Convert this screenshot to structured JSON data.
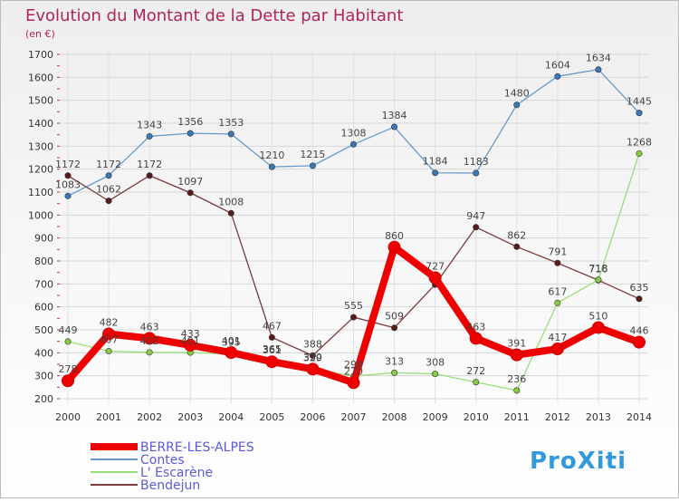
{
  "header": {
    "title": "Evolution du Montant de la Dette par Habitant",
    "subtitle": "(en €)"
  },
  "logo": {
    "text": "ProXiti"
  },
  "colors": {
    "title": "#b0245c",
    "background_top": "#f2f2f2",
    "background_bottom": "#ffffff",
    "grid": "#d8d8d8",
    "axis_text": "#333333",
    "label_text": "#444444",
    "legend_text": "#5b5bd6"
  },
  "chart_data": {
    "type": "line",
    "title": "Evolution du Montant de la Dette par Habitant",
    "subtitle": "(en €)",
    "xlabel": "",
    "ylabel": "",
    "x": [
      "2000",
      "2001",
      "2002",
      "2003",
      "2004",
      "2005",
      "2006",
      "2007",
      "2008",
      "2009",
      "2010",
      "2011",
      "2012",
      "2013",
      "2014"
    ],
    "ylim": [
      200,
      1700
    ],
    "yticks": [
      200,
      300,
      400,
      500,
      600,
      700,
      800,
      900,
      1000,
      1100,
      1200,
      1300,
      1400,
      1500,
      1600,
      1700
    ],
    "grid": true,
    "legend_position": "bottom-left",
    "series": [
      {
        "name": "Contes",
        "color": "#6699cc",
        "marker": "#3a78b8",
        "values": [
          1083,
          1172,
          1343,
          1356,
          1353,
          1210,
          1215,
          1308,
          1384,
          1184,
          1183,
          1480,
          1604,
          1634,
          1445
        ]
      },
      {
        "name": "Bendejun",
        "color": "#7a3b3b",
        "marker": "#5a1a1a",
        "values": [
          1172,
          1062,
          1172,
          1097,
          1008,
          467,
          388,
          555,
          509,
          697,
          947,
          862,
          791,
          716,
          635
        ]
      },
      {
        "name": "L' Escarène",
        "color": "#99dd77",
        "marker": "#88cc44",
        "values": [
          449,
          407,
          402,
          401,
          395,
          365,
          330,
          298,
          313,
          308,
          272,
          236,
          617,
          718,
          1268
        ]
      },
      {
        "name": "BERRE-LES-ALPES",
        "color": "#ee0000",
        "marker": "#ee0000",
        "emphasis": true,
        "values": [
          278,
          482,
          463,
          433,
          401,
          361,
          329,
          270,
          860,
          727,
          463,
          391,
          417,
          510,
          446
        ]
      }
    ],
    "data_labels": [
      {
        "series": "Contes",
        "values": [
          "1083",
          "1172",
          "1343",
          "1356",
          "1353",
          "1210",
          "1215",
          "1308",
          "1384",
          "1184",
          "1183",
          "1480",
          "1604",
          "1634",
          "1445"
        ]
      },
      {
        "series": "Bendejun",
        "values": [
          "1172",
          "1062",
          "1172",
          "1097",
          "1008",
          "467",
          "388",
          "555",
          "509",
          "",
          "947",
          "862",
          "791",
          "716",
          "635"
        ]
      },
      {
        "series": "L' Escarène",
        "values": [
          "449",
          "407",
          "402",
          "401",
          "395",
          "365",
          "330",
          "298",
          "313",
          "308",
          "272",
          "236",
          "617",
          "718",
          "1268"
        ]
      },
      {
        "series": "BERRE-LES-ALPES",
        "values": [
          "278",
          "482",
          "463",
          "433",
          "401",
          "361",
          "329",
          "270",
          "860",
          "727",
          "463",
          "391",
          "417",
          "510",
          "446"
        ]
      }
    ]
  },
  "legend": {
    "items": [
      {
        "label": "BERRE-LES-ALPES",
        "color": "#ee0000"
      },
      {
        "label": "Contes",
        "color": "#6699cc"
      },
      {
        "label": "L' Escarène",
        "color": "#99dd77"
      },
      {
        "label": "Bendejun",
        "color": "#7a3b3b"
      }
    ]
  }
}
